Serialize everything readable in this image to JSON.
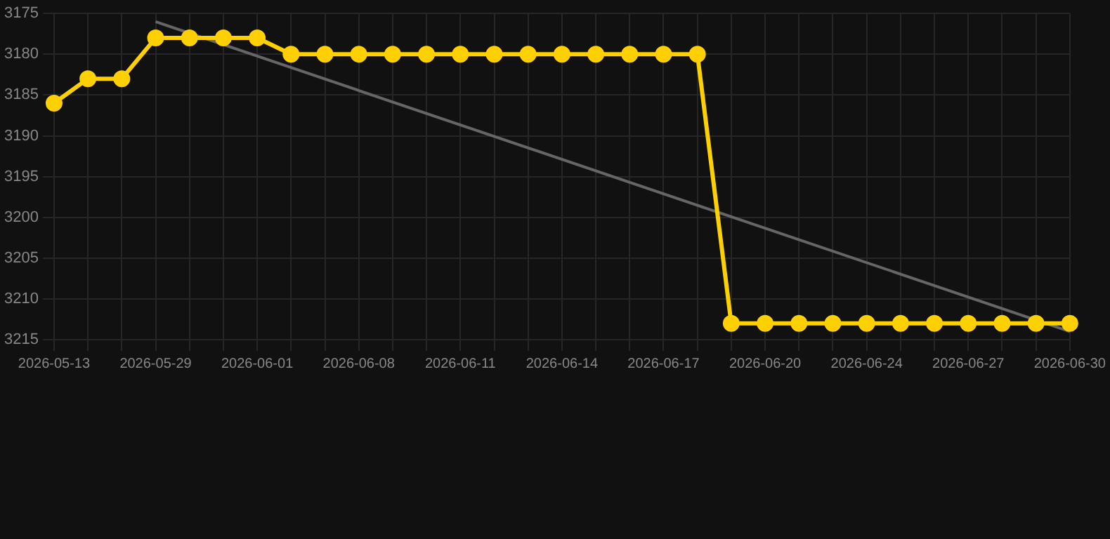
{
  "chart_data": {
    "type": "line",
    "categories": [
      "2026-05-13",
      null,
      null,
      "2026-05-29",
      null,
      null,
      "2026-06-01",
      null,
      null,
      "2026-06-08",
      null,
      null,
      "2026-06-11",
      null,
      null,
      "2026-06-14",
      null,
      null,
      "2026-06-17",
      null,
      null,
      "2026-06-20",
      null,
      null,
      "2026-06-24",
      null,
      null,
      "2026-06-27",
      null,
      null,
      "2026-06-30"
    ],
    "series": [
      {
        "color": "#ffd000",
        "marker": "circle",
        "values": [
          3186,
          3183,
          3183,
          3178,
          3178,
          3178,
          3178,
          3180,
          3180,
          3180,
          3180,
          3180,
          3180,
          3180,
          3180,
          3180,
          3180,
          3180,
          3180,
          3180,
          3213,
          3213,
          3213,
          3213,
          3213,
          3213,
          3213,
          3213,
          3213,
          3213,
          3213
        ]
      },
      {
        "color": "#666666",
        "marker": "none",
        "values": [
          null,
          null,
          null,
          3176,
          null,
          null,
          null,
          null,
          null,
          null,
          null,
          null,
          null,
          null,
          null,
          null,
          null,
          null,
          null,
          null,
          null,
          null,
          null,
          null,
          null,
          null,
          null,
          null,
          null,
          null,
          3214
        ]
      }
    ],
    "ylim": [
      3215,
      3175
    ],
    "yticks": [
      3175,
      3180,
      3185,
      3190,
      3195,
      3200,
      3205,
      3210,
      3215
    ],
    "grid": true
  }
}
